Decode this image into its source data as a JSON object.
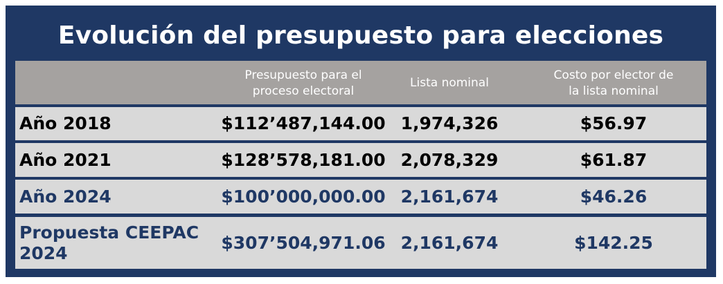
{
  "title": "Evolución del presupuesto para elecciones",
  "header": {
    "col0": "",
    "col1_line1": "Presupuesto para el",
    "col1_line2": "proceso electoral",
    "col2": "Lista nominal",
    "col3_line1": "Costo por elector de",
    "col3_line2": "la lista nominal"
  },
  "rows": [
    {
      "label": "Año 2018",
      "presupuesto": "$112’487,144.00",
      "lista_nominal": "1,974,326",
      "costo": "$56.97",
      "text_color": "#000000"
    },
    {
      "label": "Año 2021",
      "presupuesto": "$128’578,181.00",
      "lista_nominal": "2,078,329",
      "costo": "$61.87",
      "text_color": "#000000"
    },
    {
      "label": "Año 2024",
      "presupuesto": "$100’000,000.00",
      "lista_nominal": "2,161,674",
      "costo": "$46.26",
      "text_color": "#1f3864"
    },
    {
      "label_line1": "Propuesta CEEPAC",
      "label_line2": "2024",
      "presupuesto": "$307’504,971.06",
      "lista_nominal": "2,161,674",
      "costo": "$142.25",
      "text_color": "#1f3864"
    }
  ],
  "colors": {
    "frame": "#1f3864",
    "header_bg": "#a5a2a0",
    "row_bg": "#d9d9d9",
    "title_text": "#ffffff"
  }
}
